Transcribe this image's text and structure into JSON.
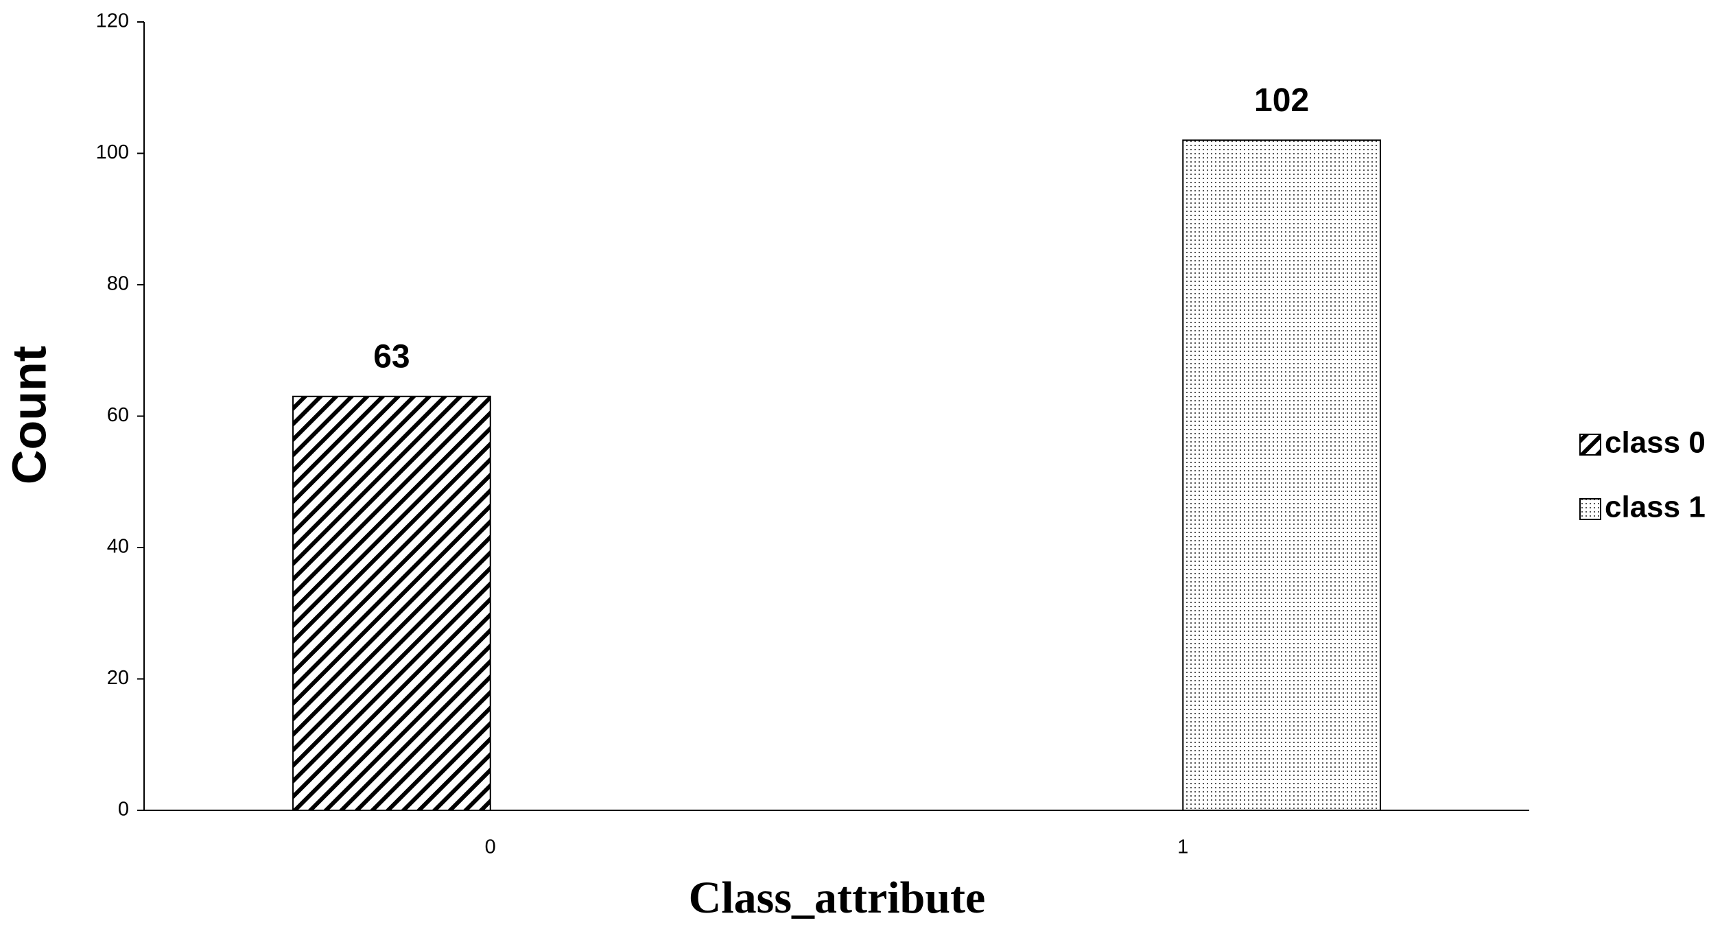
{
  "chart_data": {
    "type": "bar",
    "x_label": "Class_attribute",
    "y_label": "Count",
    "categories": [
      "0",
      "1"
    ],
    "series": [
      {
        "name": "class 0",
        "color": "#000000",
        "pattern": "hatch",
        "values": [
          63,
          null
        ]
      },
      {
        "name": "class 1",
        "color": "#000000",
        "pattern": "dots",
        "values": [
          null,
          102
        ]
      }
    ],
    "ylim": [
      0,
      120
    ],
    "yticks": [
      0,
      20,
      40,
      60,
      80,
      100,
      120
    ],
    "grid": false,
    "legend": "right"
  }
}
